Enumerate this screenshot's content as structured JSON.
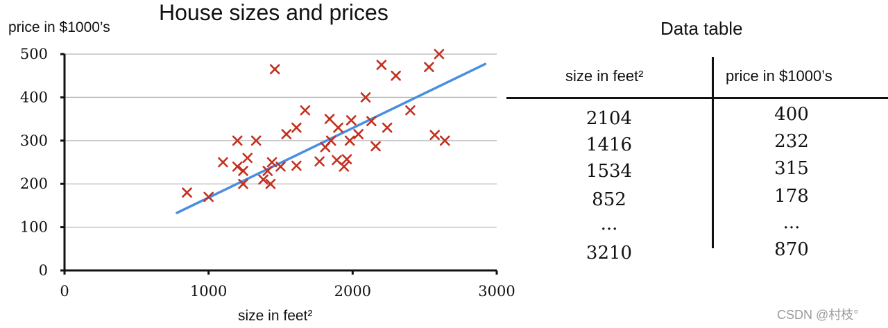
{
  "chart_data": {
    "type": "scatter",
    "title": "House sizes and prices",
    "xlabel": "size in feet²",
    "ylabel": "price in $1000’s",
    "xlim": [
      0,
      3000
    ],
    "ylim": [
      0,
      500
    ],
    "xticks": [
      "0",
      "1000",
      "2000",
      "3000"
    ],
    "yticks": [
      "0",
      "100",
      "200",
      "300",
      "400",
      "500"
    ],
    "grid": "horizontal",
    "marker_color": "#c42f1e",
    "line_color": "#4a8ee0",
    "points": [
      [
        850,
        180
      ],
      [
        1000,
        170
      ],
      [
        1100,
        250
      ],
      [
        1200,
        300
      ],
      [
        1200,
        240
      ],
      [
        1240,
        200
      ],
      [
        1240,
        230
      ],
      [
        1270,
        260
      ],
      [
        1330,
        300
      ],
      [
        1380,
        210
      ],
      [
        1410,
        230
      ],
      [
        1430,
        200
      ],
      [
        1440,
        250
      ],
      [
        1460,
        465
      ],
      [
        1500,
        240
      ],
      [
        1540,
        315
      ],
      [
        1610,
        330
      ],
      [
        1610,
        242
      ],
      [
        1670,
        370
      ],
      [
        1770,
        252
      ],
      [
        1810,
        285
      ],
      [
        1840,
        350
      ],
      [
        1850,
        300
      ],
      [
        1890,
        255
      ],
      [
        1900,
        330
      ],
      [
        1940,
        240
      ],
      [
        1960,
        257
      ],
      [
        1980,
        300
      ],
      [
        1990,
        347
      ],
      [
        2040,
        315
      ],
      [
        2090,
        400
      ],
      [
        2130,
        345
      ],
      [
        2160,
        287
      ],
      [
        2200,
        475
      ],
      [
        2240,
        330
      ],
      [
        2300,
        450
      ],
      [
        2400,
        370
      ],
      [
        2530,
        470
      ],
      [
        2570,
        313
      ],
      [
        2600,
        500
      ],
      [
        2640,
        300
      ]
    ],
    "fit_line": {
      "x": [
        780,
        2920
      ],
      "y": [
        133,
        477
      ]
    }
  },
  "table": {
    "title": "Data table",
    "header_size": "size in feet²",
    "header_price": "price in $1000’s",
    "rows": [
      {
        "size": "2104",
        "price": "400"
      },
      {
        "size": "1416",
        "price": "232"
      },
      {
        "size": "1534",
        "price": "315"
      },
      {
        "size": "852",
        "price": "178"
      },
      {
        "size": "...",
        "price": "..."
      },
      {
        "size": "3210",
        "price": "870"
      }
    ]
  },
  "watermark": "CSDN @村枝°"
}
